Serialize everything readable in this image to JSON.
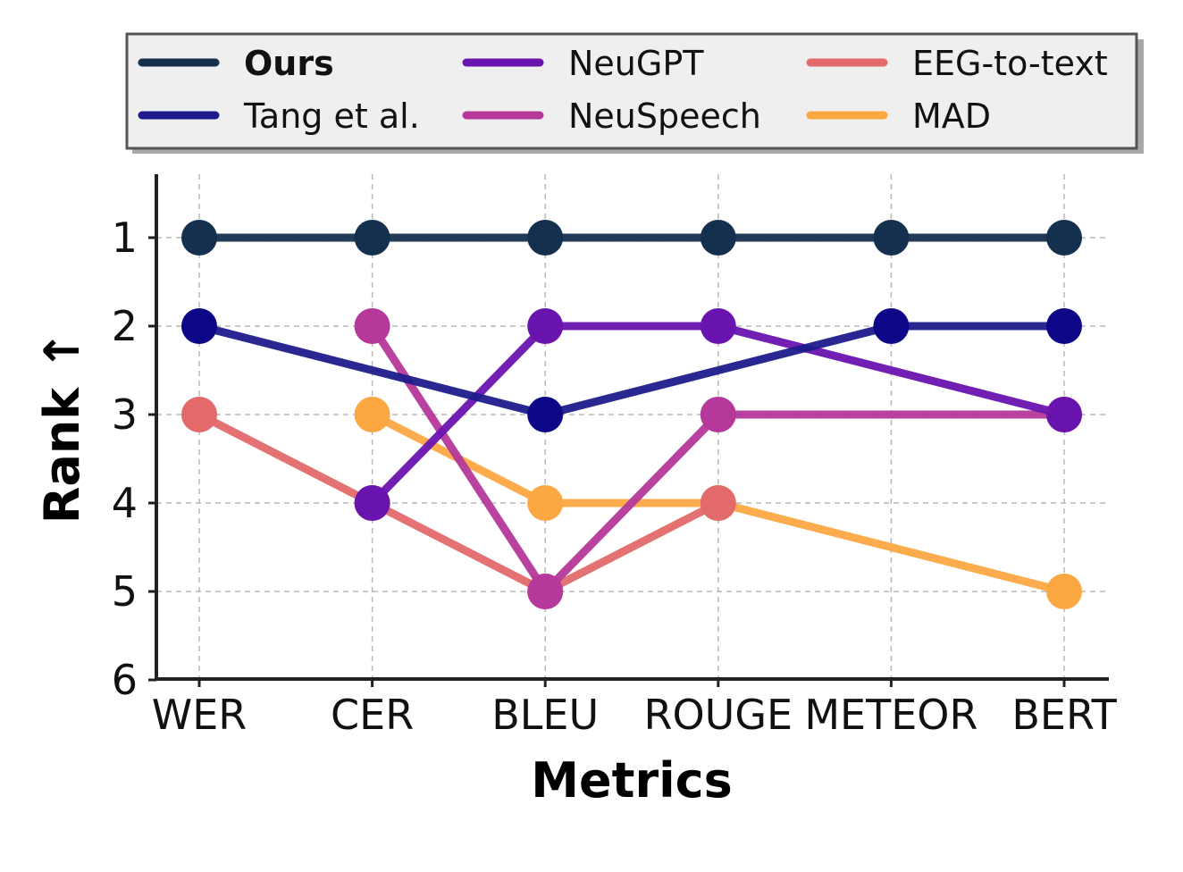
{
  "chart_data": {
    "type": "line",
    "xlabel": "Metrics",
    "ylabel": "Rank ↑",
    "categories": [
      "WER",
      "CER",
      "BLEU",
      "ROUGE",
      "METEOR",
      "BERT"
    ],
    "ylim": [
      6,
      0.3
    ],
    "yticks": [
      "1",
      "2",
      "3",
      "4",
      "5",
      "6"
    ],
    "grid": true,
    "legend": {
      "placement": "top",
      "columns": 3
    },
    "series": [
      {
        "name": "Ours",
        "color": "#15304f",
        "bold": true,
        "values": [
          1,
          1,
          1,
          1,
          1,
          1
        ]
      },
      {
        "name": "Tang et al.",
        "color": "#1e1b8c",
        "marker_color": "#0d0787",
        "values": [
          2,
          null,
          3,
          null,
          2,
          2
        ]
      },
      {
        "name": "NeuGPT",
        "color": "#6a14b0",
        "values": [
          null,
          4,
          2,
          2,
          null,
          3
        ]
      },
      {
        "name": "NeuSpeech",
        "color": "#b5389a",
        "values": [
          null,
          2,
          5,
          3,
          null,
          3
        ]
      },
      {
        "name": "EEG-to-text",
        "color": "#e36a6a",
        "values": [
          3,
          4,
          5,
          4,
          null,
          null
        ]
      },
      {
        "name": "MAD",
        "color": "#fca842",
        "values": [
          null,
          3,
          4,
          4,
          null,
          5
        ]
      }
    ]
  }
}
